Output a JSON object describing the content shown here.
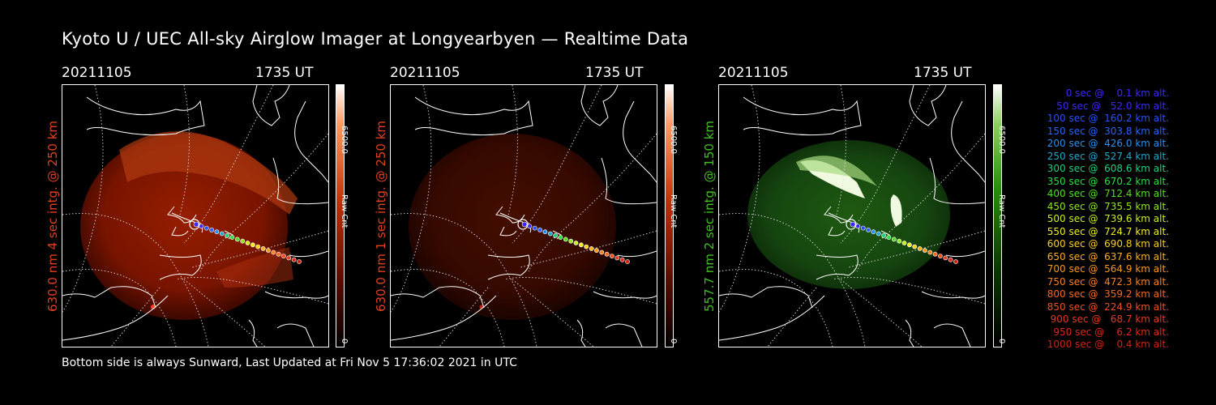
{
  "title": "Kyoto U / UEC All-sky Airglow Imager at Longyearbyen — Realtime Data",
  "panels": [
    {
      "date": "20211105",
      "time": "1735 UT",
      "side_label": "630.0 nm 4 sec intg. @ 250 km",
      "label_color": "#e04020",
      "cb_max": "6500.0",
      "cb_min": "0",
      "cb_unit": "Raw Cnt",
      "colormap": "red"
    },
    {
      "date": "20211105",
      "time": "1735 UT",
      "side_label": "630.0 nm 1 sec intg. @ 250 km",
      "label_color": "#e04020",
      "cb_max": "6500.0",
      "cb_min": "0",
      "cb_unit": "Raw Cnt",
      "colormap": "red"
    },
    {
      "date": "20211105",
      "time": "1735 UT",
      "side_label": "557.7 nm 2 sec intg. @ 150 km",
      "label_color": "#40c020",
      "cb_max": "6500.0",
      "cb_min": "0",
      "cb_unit": "Raw Cnt",
      "colormap": "green"
    }
  ],
  "legend": [
    {
      "text": "0 sec @    0.1 km alt.",
      "color": "#3c28ff"
    },
    {
      "text": "50 sec @   52.0 km alt.",
      "color": "#3c28ff"
    },
    {
      "text": "100 sec @  160.2 km alt.",
      "color": "#2850ff"
    },
    {
      "text": "150 sec @  303.8 km alt.",
      "color": "#2864ff"
    },
    {
      "text": "200 sec @  426.0 km alt.",
      "color": "#2890f0"
    },
    {
      "text": "250 sec @  527.4 km alt.",
      "color": "#20a8c8"
    },
    {
      "text": "300 sec @  608.6 km alt.",
      "color": "#20d080"
    },
    {
      "text": "350 sec @  670.2 km alt.",
      "color": "#28e040"
    },
    {
      "text": "400 sec @  712.4 km alt.",
      "color": "#50e020"
    },
    {
      "text": "450 sec @  735.5 km alt.",
      "color": "#90e820"
    },
    {
      "text": "500 sec @  739.6 km alt.",
      "color": "#c8f020"
    },
    {
      "text": "550 sec @  724.7 km alt.",
      "color": "#f0f020"
    },
    {
      "text": "600 sec @  690.8 km alt.",
      "color": "#f8d020"
    },
    {
      "text": "650 sec @  637.6 km alt.",
      "color": "#f8b020"
    },
    {
      "text": "700 sec @  564.9 km alt.",
      "color": "#f89820"
    },
    {
      "text": "750 sec @  472.3 km alt.",
      "color": "#f88020"
    },
    {
      "text": "800 sec @  359.2 km alt.",
      "color": "#f86820"
    },
    {
      "text": "850 sec @  224.9 km alt.",
      "color": "#f05020"
    },
    {
      "text": "900 sec @   68.7 km alt.",
      "color": "#e83820"
    },
    {
      "text": "950 sec @    6.2 km alt.",
      "color": "#e02818"
    },
    {
      "text": "1000 sec @    0.4 km alt.",
      "color": "#d82010"
    }
  ],
  "footer": "Bottom side is always Sunward, Last Updated at Fri Nov  5 17:36:02 2021 in UTC"
}
